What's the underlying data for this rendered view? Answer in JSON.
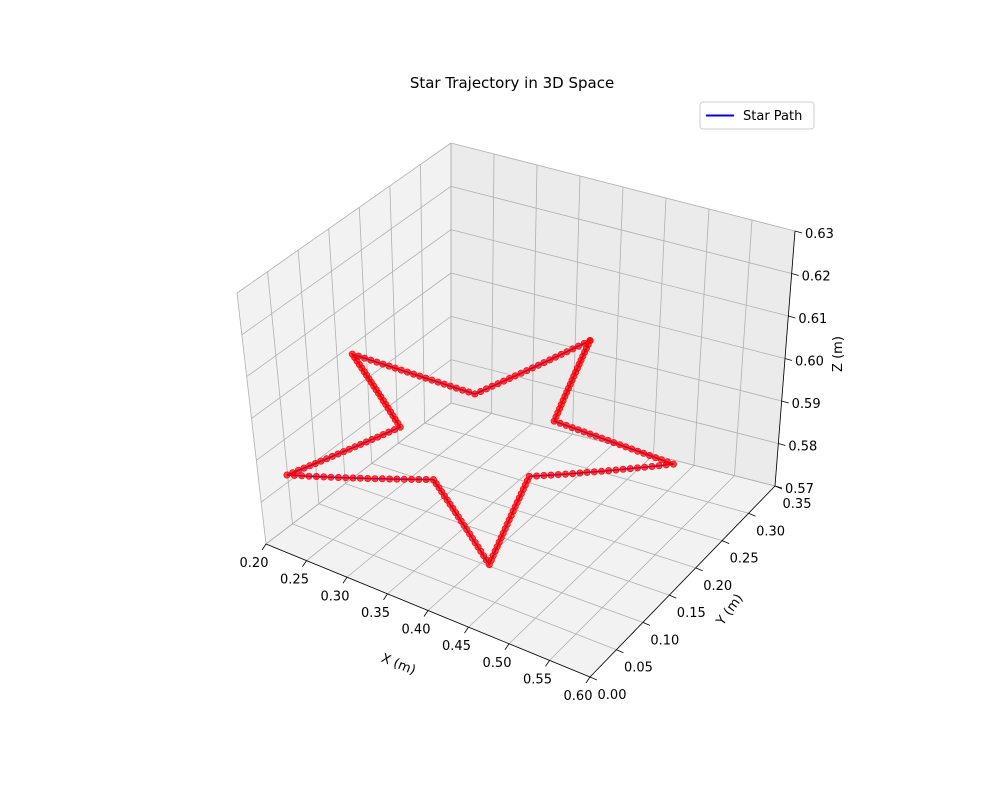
{
  "chart_data": {
    "type": "line",
    "projection": "3d",
    "title": "Star Trajectory in 3D Space",
    "xlabel": "X (m)",
    "ylabel": "Y (m)",
    "zlabel": "Z (m)",
    "xlim": [
      0.2,
      0.6
    ],
    "ylim": [
      0.0,
      0.35
    ],
    "zlim": [
      0.57,
      0.63
    ],
    "xticks": [
      "0.20",
      "0.25",
      "0.30",
      "0.35",
      "0.40",
      "0.45",
      "0.50",
      "0.55",
      "0.60"
    ],
    "yticks": [
      "0.00",
      "0.05",
      "0.10",
      "0.15",
      "0.20",
      "0.25",
      "0.30",
      "0.35"
    ],
    "zticks": [
      "0.57",
      "0.58",
      "0.59",
      "0.60",
      "0.61",
      "0.62",
      "0.63"
    ],
    "grid": true,
    "legend": {
      "placement": "top-right",
      "entries": [
        {
          "label": "Star Path",
          "color": "#0000ff"
        }
      ]
    },
    "series": [
      {
        "name": "Star Path",
        "line_color": "#0000ff",
        "marker_color": "#ff0000",
        "points_per_segment": 20,
        "vertices": [
          {
            "x": 0.4,
            "y": 0.3,
            "z": 0.6
          },
          {
            "x": 0.447,
            "y": 0.165,
            "z": 0.6
          },
          {
            "x": 0.59,
            "y": 0.162,
            "z": 0.6
          },
          {
            "x": 0.476,
            "y": 0.076,
            "z": 0.6
          },
          {
            "x": 0.518,
            "y": -0.061,
            "z": 0.6
          },
          {
            "x": 0.4,
            "y": 0.02,
            "z": 0.6
          },
          {
            "x": 0.282,
            "y": -0.061,
            "z": 0.6
          },
          {
            "x": 0.324,
            "y": 0.076,
            "z": 0.6
          },
          {
            "x": 0.21,
            "y": 0.162,
            "z": 0.6
          },
          {
            "x": 0.353,
            "y": 0.165,
            "z": 0.6
          },
          {
            "x": 0.4,
            "y": 0.3,
            "z": 0.6
          }
        ]
      }
    ]
  },
  "colors": {
    "pane_back": "#ebebeb",
    "pane_side": "#f2f2f2",
    "pane_floor": "#f2f2f2",
    "grid": "#b0b0b0",
    "line": "#0000ff",
    "marker": "#ff0000"
  }
}
